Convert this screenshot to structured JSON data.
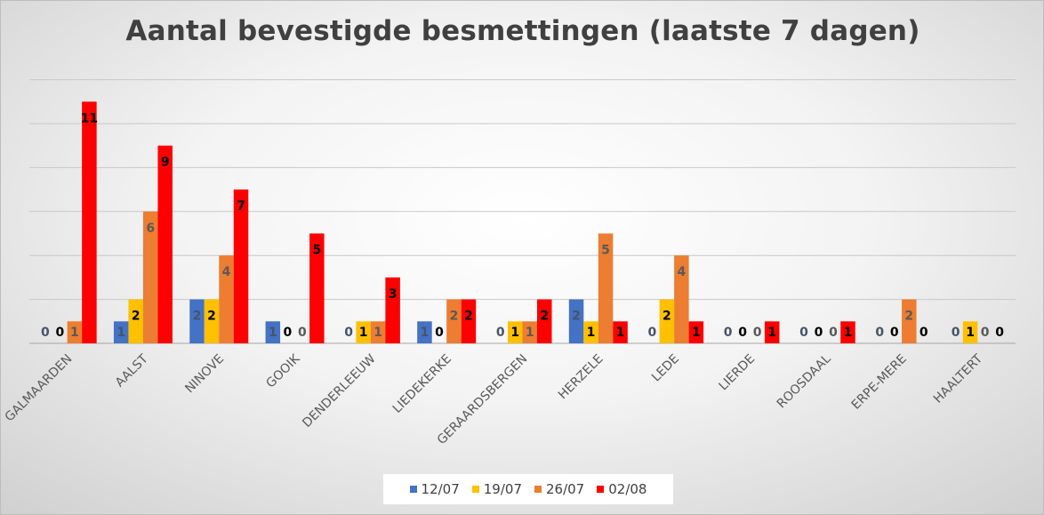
{
  "chart_data": {
    "type": "bar",
    "title": "Aantal bevestigde besmettingen (laatste 7 dagen)",
    "xlabel": "",
    "ylabel": "",
    "ylim": [
      0,
      12
    ],
    "grid": true,
    "legend_position": "bottom",
    "categories": [
      "GALMAARDEN",
      "AALST",
      "NINOVE",
      "GOOIK",
      "DENDERLEEUW",
      "LIEDEKERKE",
      "GERAARDSBERGEN",
      "HERZELE",
      "LEDE",
      "LIERDE",
      "ROOSDAAL",
      "ERPE-MERE",
      "HAALTERT"
    ],
    "series": [
      {
        "name": "12/07",
        "color": "#4472c4",
        "label_color": "#44546a",
        "values": [
          0,
          1,
          2,
          1,
          0,
          1,
          0,
          2,
          0,
          0,
          0,
          0,
          0
        ]
      },
      {
        "name": "19/07",
        "color": "#ffc000",
        "label_color": "#000000",
        "values": [
          0,
          2,
          2,
          0,
          1,
          0,
          1,
          1,
          2,
          0,
          0,
          0,
          1
        ]
      },
      {
        "name": "26/07",
        "color": "#ed7d31",
        "label_color": "#595959",
        "values": [
          1,
          6,
          4,
          0,
          1,
          2,
          1,
          5,
          4,
          0,
          0,
          2,
          0
        ]
      },
      {
        "name": "02/08",
        "color": "#ff0000",
        "label_color": "#000000",
        "values": [
          11,
          9,
          7,
          5,
          3,
          2,
          2,
          1,
          1,
          1,
          1,
          0,
          0
        ]
      }
    ]
  }
}
